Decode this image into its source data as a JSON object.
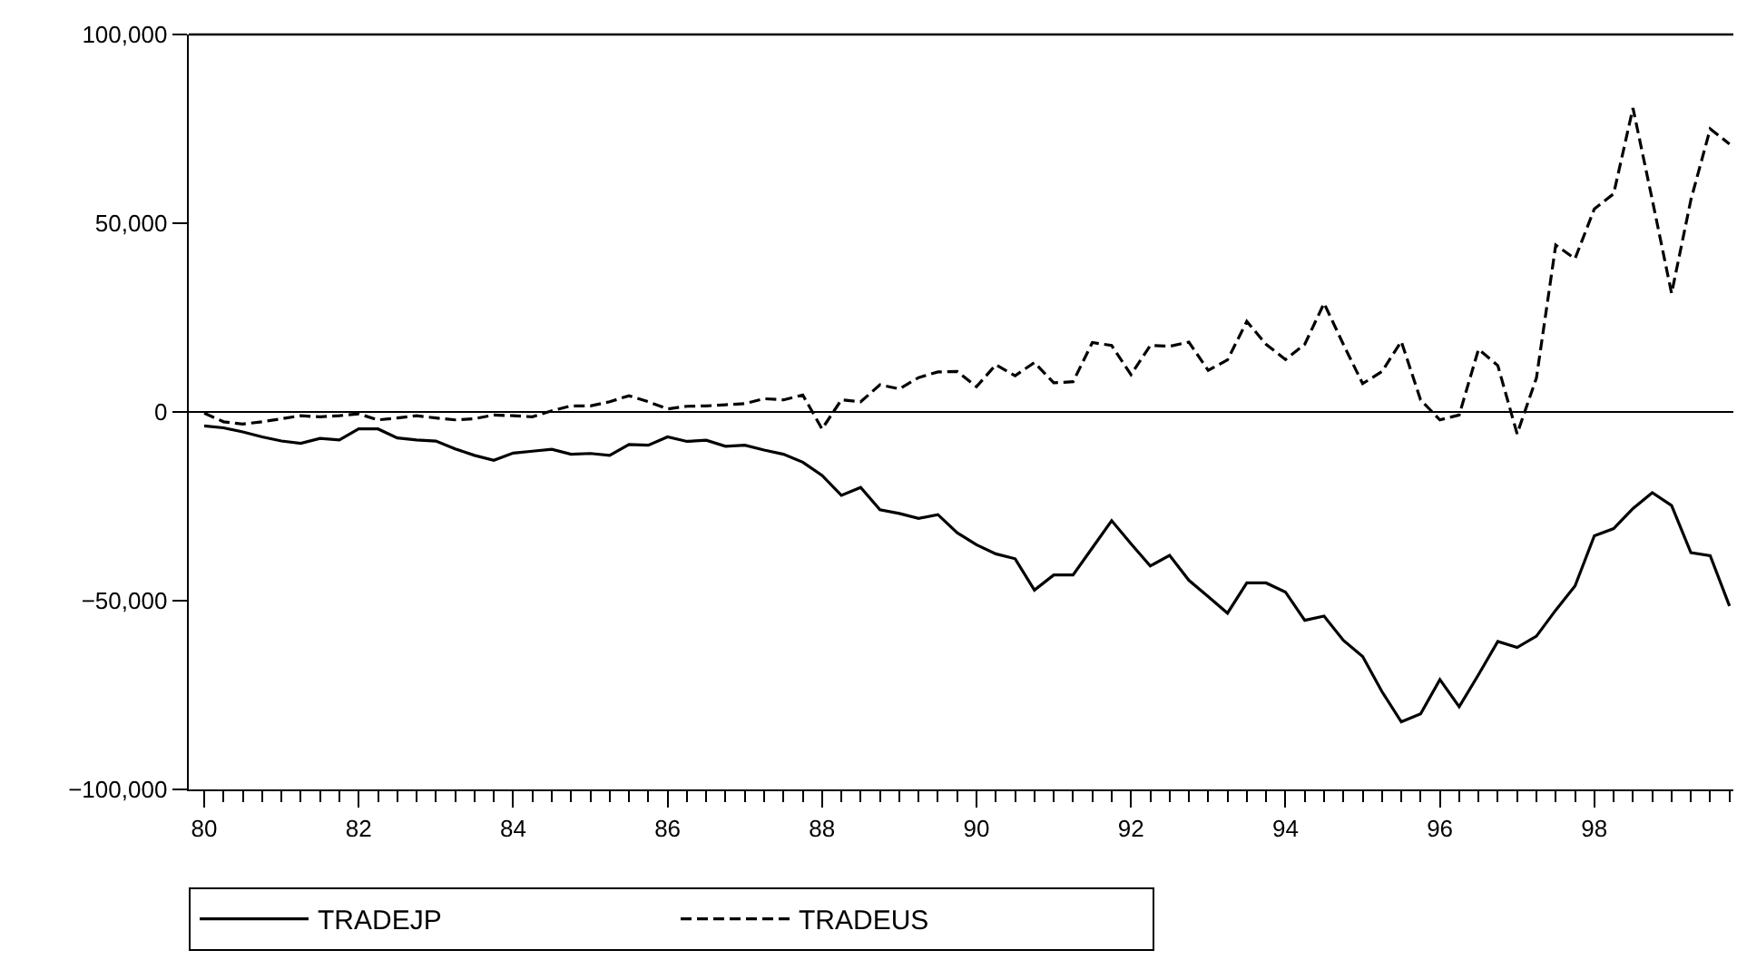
{
  "chart_data": {
    "type": "line",
    "x": [
      1980,
      1980.25,
      1980.5,
      1980.75,
      1981,
      1981.25,
      1981.5,
      1981.75,
      1982,
      1982.25,
      1982.5,
      1982.75,
      1983,
      1983.25,
      1983.5,
      1983.75,
      1984,
      1984.25,
      1984.5,
      1984.75,
      1985,
      1985.25,
      1985.5,
      1985.75,
      1986,
      1986.25,
      1986.5,
      1986.75,
      1987,
      1987.25,
      1987.5,
      1987.75,
      1988,
      1988.25,
      1988.5,
      1988.75,
      1989,
      1989.25,
      1989.5,
      1989.75,
      1990,
      1990.25,
      1990.5,
      1990.75,
      1991,
      1991.25,
      1991.5,
      1991.75,
      1992,
      1992.25,
      1992.5,
      1992.75,
      1993,
      1993.25,
      1993.5,
      1993.75,
      1994,
      1994.25,
      1994.5,
      1994.75,
      1995,
      1995.25,
      1995.5,
      1995.75,
      1996,
      1996.25,
      1996.5,
      1996.75,
      1997,
      1997.25,
      1997.5,
      1997.75,
      1998,
      1998.25,
      1998.5,
      1998.75,
      1999,
      1999.25,
      1999.5,
      1999.75
    ],
    "series": [
      {
        "name": "TRADEJP",
        "color": "#000000",
        "line_style": "solid",
        "values": [
          -3700,
          -4200,
          -5300,
          -6600,
          -7700,
          -8300,
          -7000,
          -7400,
          -4500,
          -4500,
          -6900,
          -7400,
          -7700,
          -9800,
          -11500,
          -12800,
          -10900,
          -10400,
          -9900,
          -11200,
          -11000,
          -11500,
          -8600,
          -8800,
          -6600,
          -7800,
          -7500,
          -9100,
          -8800,
          -10100,
          -11200,
          -13300,
          -16800,
          -22100,
          -20000,
          -25900,
          -26900,
          -28200,
          -27200,
          -32000,
          -35200,
          -37600,
          -38900,
          -47200,
          -43200,
          -43200,
          -36000,
          -28800,
          -34900,
          -40800,
          -38000,
          -44600,
          -48900,
          -53300,
          -45300,
          -45300,
          -47700,
          -55200,
          -54100,
          -60500,
          -64800,
          -74100,
          -82100,
          -80000,
          -70900,
          -78100,
          -69600,
          -60800,
          -62400,
          -59400,
          -52500,
          -46100,
          -32800,
          -30900,
          -25600,
          -21400,
          -24800,
          -37300,
          -38100,
          -51400
        ]
      },
      {
        "name": "TRADEUS",
        "color": "#000000",
        "line_style": "dashed",
        "values": [
          -300,
          -2600,
          -3200,
          -2600,
          -1800,
          -1000,
          -1300,
          -1000,
          -500,
          -2100,
          -1600,
          -1000,
          -1600,
          -2100,
          -1800,
          -800,
          -1000,
          -1300,
          300,
          1600,
          1600,
          2700,
          4300,
          2700,
          800,
          1500,
          1600,
          1900,
          2200,
          3500,
          3200,
          4500,
          -4500,
          3200,
          2700,
          7200,
          6100,
          9100,
          10600,
          10700,
          6700,
          12500,
          9600,
          13100,
          7700,
          8000,
          18400,
          17600,
          9900,
          17600,
          17400,
          18500,
          11000,
          13800,
          24000,
          17900,
          13900,
          17900,
          28800,
          17900,
          7500,
          10700,
          18700,
          3200,
          -2100,
          -800,
          16600,
          12300,
          -5800,
          9000,
          44200,
          40600,
          53800,
          57800,
          80500,
          56200,
          31400,
          56200,
          75000,
          71000
        ]
      }
    ],
    "xlim": [
      1979.8,
      1999.8
    ],
    "xticks": [
      {
        "value": 1980,
        "label": "80"
      },
      {
        "value": 1980.25,
        "label": null
      },
      {
        "value": 1980.5,
        "label": null
      },
      {
        "value": 1980.75,
        "label": null
      },
      {
        "value": 1981,
        "label": null
      },
      {
        "value": 1981.25,
        "label": null
      },
      {
        "value": 1981.5,
        "label": null
      },
      {
        "value": 1981.75,
        "label": null
      },
      {
        "value": 1982,
        "label": "82"
      },
      {
        "value": 1982.25,
        "label": null
      },
      {
        "value": 1982.5,
        "label": null
      },
      {
        "value": 1982.75,
        "label": null
      },
      {
        "value": 1983,
        "label": null
      },
      {
        "value": 1983.25,
        "label": null
      },
      {
        "value": 1983.5,
        "label": null
      },
      {
        "value": 1983.75,
        "label": null
      },
      {
        "value": 1984,
        "label": "84"
      },
      {
        "value": 1984.25,
        "label": null
      },
      {
        "value": 1984.5,
        "label": null
      },
      {
        "value": 1984.75,
        "label": null
      },
      {
        "value": 1985,
        "label": null
      },
      {
        "value": 1985.25,
        "label": null
      },
      {
        "value": 1985.5,
        "label": null
      },
      {
        "value": 1985.75,
        "label": null
      },
      {
        "value": 1986,
        "label": "86"
      },
      {
        "value": 1986.25,
        "label": null
      },
      {
        "value": 1986.5,
        "label": null
      },
      {
        "value": 1986.75,
        "label": null
      },
      {
        "value": 1987,
        "label": null
      },
      {
        "value": 1987.25,
        "label": null
      },
      {
        "value": 1987.5,
        "label": null
      },
      {
        "value": 1987.75,
        "label": null
      },
      {
        "value": 1988,
        "label": "88"
      },
      {
        "value": 1988.25,
        "label": null
      },
      {
        "value": 1988.5,
        "label": null
      },
      {
        "value": 1988.75,
        "label": null
      },
      {
        "value": 1989,
        "label": null
      },
      {
        "value": 1989.25,
        "label": null
      },
      {
        "value": 1989.5,
        "label": null
      },
      {
        "value": 1989.75,
        "label": null
      },
      {
        "value": 1990,
        "label": "90"
      },
      {
        "value": 1990.25,
        "label": null
      },
      {
        "value": 1990.5,
        "label": null
      },
      {
        "value": 1990.75,
        "label": null
      },
      {
        "value": 1991,
        "label": null
      },
      {
        "value": 1991.25,
        "label": null
      },
      {
        "value": 1991.5,
        "label": null
      },
      {
        "value": 1991.75,
        "label": null
      },
      {
        "value": 1992,
        "label": "92"
      },
      {
        "value": 1992.25,
        "label": null
      },
      {
        "value": 1992.5,
        "label": null
      },
      {
        "value": 1992.75,
        "label": null
      },
      {
        "value": 1993,
        "label": null
      },
      {
        "value": 1993.25,
        "label": null
      },
      {
        "value": 1993.5,
        "label": null
      },
      {
        "value": 1993.75,
        "label": null
      },
      {
        "value": 1994,
        "label": "94"
      },
      {
        "value": 1994.25,
        "label": null
      },
      {
        "value": 1994.5,
        "label": null
      },
      {
        "value": 1994.75,
        "label": null
      },
      {
        "value": 1995,
        "label": null
      },
      {
        "value": 1995.25,
        "label": null
      },
      {
        "value": 1995.5,
        "label": null
      },
      {
        "value": 1995.75,
        "label": null
      },
      {
        "value": 1996,
        "label": "96"
      },
      {
        "value": 1996.25,
        "label": null
      },
      {
        "value": 1996.5,
        "label": null
      },
      {
        "value": 1996.75,
        "label": null
      },
      {
        "value": 1997,
        "label": null
      },
      {
        "value": 1997.25,
        "label": null
      },
      {
        "value": 1997.5,
        "label": null
      },
      {
        "value": 1997.75,
        "label": null
      },
      {
        "value": 1998,
        "label": "98"
      },
      {
        "value": 1998.25,
        "label": null
      },
      {
        "value": 1998.5,
        "label": null
      },
      {
        "value": 1998.75,
        "label": null
      },
      {
        "value": 1999,
        "label": null
      },
      {
        "value": 1999.25,
        "label": null
      },
      {
        "value": 1999.5,
        "label": null
      },
      {
        "value": 1999.75,
        "label": null
      }
    ],
    "ylim": [
      -100000,
      100000
    ],
    "yticks": [
      {
        "value": -100000,
        "label": "−100,000"
      },
      {
        "value": -50000,
        "label": "−50,000"
      },
      0,
      {
        "value": 50000,
        "label": "50,000"
      },
      {
        "value": 100000,
        "label": "100,000"
      }
    ],
    "ref_lines": [
      {
        "axis": "y",
        "value": 0,
        "color": "#000000"
      }
    ],
    "grid": false,
    "legend": "bottom",
    "marker": "none"
  }
}
